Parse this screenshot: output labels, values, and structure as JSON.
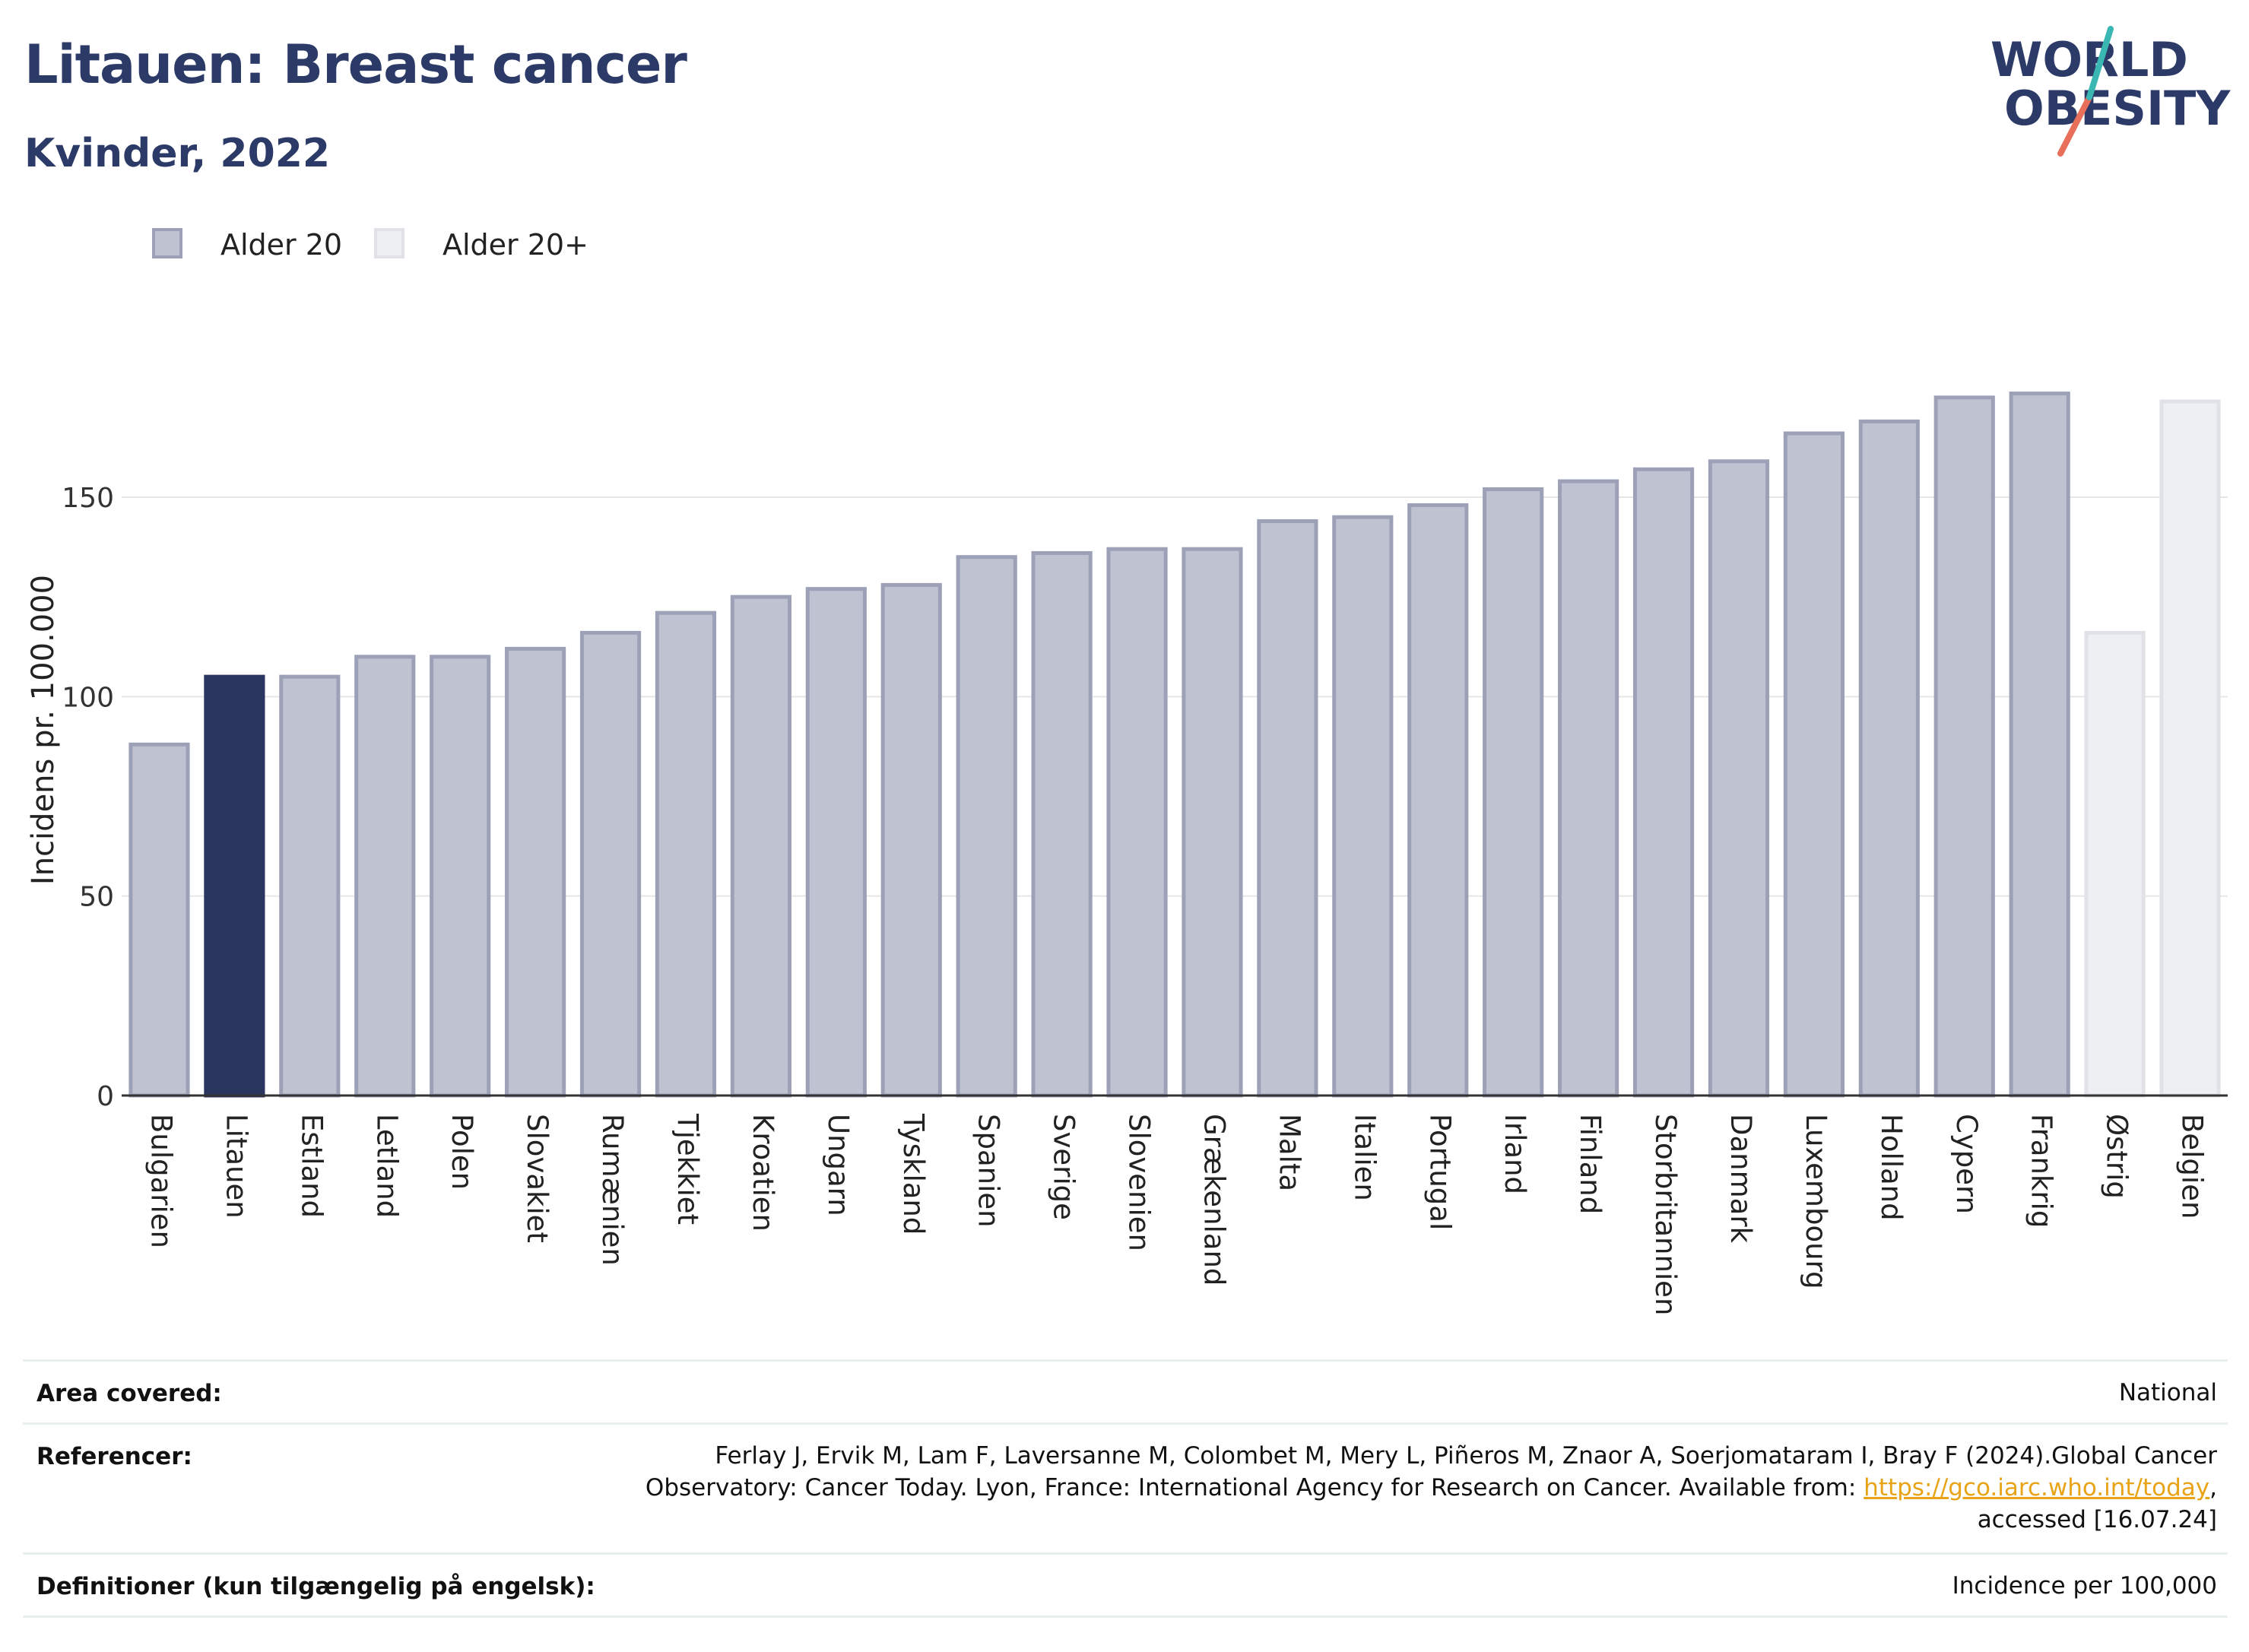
{
  "header": {
    "title": "Litauen: Breast cancer",
    "subtitle": "Kvinder, 2022"
  },
  "logo": {
    "line1": "WORLD",
    "line2": "OBESITY"
  },
  "legend": [
    {
      "label": "Alder 20",
      "color": "#bfc2d0",
      "border": "#9da1b8"
    },
    {
      "label": "Alder 20+",
      "color": "#eeeff3",
      "border": "#e1e2e8"
    }
  ],
  "chart_data": {
    "type": "bar",
    "categories": [
      "Bulgarien",
      "Litauen",
      "Estland",
      "Letland",
      "Polen",
      "Slovakiet",
      "Rumænien",
      "Tjekkiet",
      "Kroatien",
      "Ungarn",
      "Tyskland",
      "Spanien",
      "Sverige",
      "Slovenien",
      "Grækenland",
      "Malta",
      "Italien",
      "Portugal",
      "Irland",
      "Finland",
      "Storbritannien",
      "Danmark",
      "Luxembourg",
      "Holland",
      "Cypern",
      "Frankrig",
      "Østrig",
      "Belgien"
    ],
    "values": [
      88,
      105,
      105,
      110,
      110,
      112,
      116,
      121,
      125,
      127,
      128,
      135,
      136,
      137,
      137,
      144,
      145,
      148,
      152,
      154,
      157,
      159,
      166,
      169,
      175,
      176,
      116,
      174
    ],
    "series_group": [
      "Alder 20",
      "Alder 20",
      "Alder 20",
      "Alder 20",
      "Alder 20",
      "Alder 20",
      "Alder 20",
      "Alder 20",
      "Alder 20",
      "Alder 20",
      "Alder 20",
      "Alder 20",
      "Alder 20",
      "Alder 20",
      "Alder 20",
      "Alder 20",
      "Alder 20",
      "Alder 20",
      "Alder 20",
      "Alder 20",
      "Alder 20",
      "Alder 20",
      "Alder 20",
      "Alder 20",
      "Alder 20",
      "Alder 20",
      "Alder 20+",
      "Alder 20+"
    ],
    "highlight": "Litauen",
    "highlight_color": "#2b3660",
    "ylabel": "Incidens pr. 100.000",
    "ylim": [
      0,
      190
    ],
    "yticks": [
      0,
      50,
      100,
      150
    ],
    "grid": true,
    "legend_position": "top-left"
  },
  "footer": {
    "area_label": "Area covered:",
    "area_value": "National",
    "ref_label": "Referencer:",
    "ref_line1": "Ferlay J, Ervik M, Lam F, Laversanne M, Colombet M, Mery L, Piñeros M, Znaor A, Soerjomataram I, Bray F (2024).Global Cancer",
    "ref_line2_pre": "Observatory: Cancer Today. Lyon, France: International Agency for Research on Cancer. Available from: ",
    "ref_link": "https://gco.iarc.who.int/today",
    "ref_line2_post": ",",
    "ref_line3": "accessed [16.07.24]",
    "def_label": "Definitioner (kun tilgængelig på engelsk):",
    "def_value": "Incidence per 100,000"
  }
}
